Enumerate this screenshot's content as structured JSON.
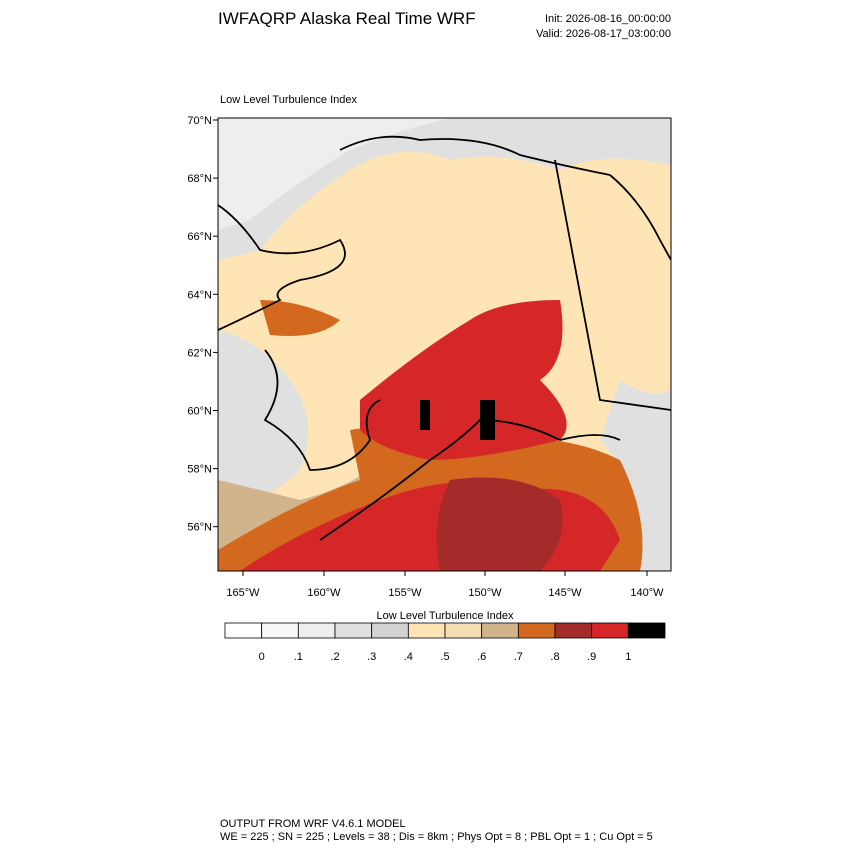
{
  "header": {
    "title": "IWFAQRP Alaska Real Time WRF",
    "init": "Init: 2026-08-16_00:00:00",
    "valid": "Valid: 2026-08-17_03:00:00"
  },
  "map": {
    "subtitle": "Low Level Turbulence Index",
    "lat_labels": [
      "70°N",
      "68°N",
      "66°N",
      "64°N",
      "62°N",
      "60°N",
      "58°N",
      "56°N"
    ],
    "lon_labels": [
      "165°W",
      "160°W",
      "155°W",
      "150°W",
      "145°W",
      "140°W"
    ]
  },
  "colorbar": {
    "title": "Low Level Turbulence Index",
    "labels": [
      "0",
      ".1",
      ".2",
      ".3",
      ".4",
      ".5",
      ".6",
      ".7",
      ".8",
      ".9",
      "1"
    ],
    "colors": [
      "#ffffff",
      "#f7f7f7",
      "#eeeeee",
      "#e0e0e0",
      "#d3d3d3",
      "#ffe4b5",
      "#f5deb3",
      "#d2b48c",
      "#d2691e",
      "#a52a2a",
      "#d62728",
      "#000000"
    ]
  },
  "footer": {
    "line1": "OUTPUT FROM WRF V4.6.1 MODEL",
    "line2": "WE = 225 ; SN = 225 ; Levels = 38 ; Dis = 8km ; Phys Opt = 8 ; PBL Opt = 1 ; Cu Opt = 5"
  }
}
